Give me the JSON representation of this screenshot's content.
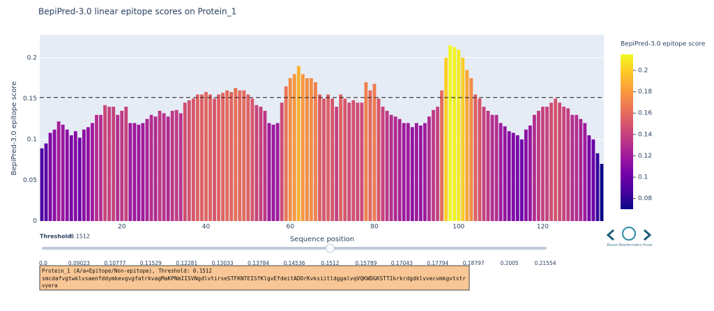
{
  "chart_data": {
    "type": "bar",
    "title": "BepiPred-3.0 linear epitope scores on Protein_1",
    "y_label": "BepiPred-3.0 epitope score",
    "x_label": "Sequence position",
    "x": [
      1,
      2,
      3,
      4,
      5,
      6,
      7,
      8,
      9,
      10,
      11,
      12,
      13,
      14,
      15,
      16,
      17,
      18,
      19,
      20,
      21,
      22,
      23,
      24,
      25,
      26,
      27,
      28,
      29,
      30,
      31,
      32,
      33,
      34,
      35,
      36,
      37,
      38,
      39,
      40,
      41,
      42,
      43,
      44,
      45,
      46,
      47,
      48,
      49,
      50,
      51,
      52,
      53,
      54,
      55,
      56,
      57,
      58,
      59,
      60,
      61,
      62,
      63,
      64,
      65,
      66,
      67,
      68,
      69,
      70,
      71,
      72,
      73,
      74,
      75,
      76,
      77,
      78,
      79,
      80,
      81,
      82,
      83,
      84,
      85,
      86,
      87,
      88,
      89,
      90,
      91,
      92,
      93,
      94,
      95,
      96,
      97,
      98,
      99,
      100,
      101,
      102,
      103,
      104,
      105,
      106,
      107,
      108,
      109,
      110,
      111,
      112,
      113,
      114,
      115,
      116,
      117,
      118,
      119,
      120,
      121,
      122,
      123,
      124,
      125,
      126,
      127,
      128,
      129,
      130,
      131,
      132,
      133,
      134
    ],
    "values": [
      0.089,
      0.095,
      0.108,
      0.112,
      0.122,
      0.118,
      0.112,
      0.105,
      0.11,
      0.102,
      0.112,
      0.115,
      0.12,
      0.13,
      0.13,
      0.142,
      0.14,
      0.14,
      0.13,
      0.135,
      0.14,
      0.12,
      0.12,
      0.118,
      0.12,
      0.125,
      0.13,
      0.128,
      0.135,
      0.132,
      0.128,
      0.135,
      0.136,
      0.132,
      0.145,
      0.148,
      0.15,
      0.155,
      0.155,
      0.158,
      0.155,
      0.15,
      0.155,
      0.157,
      0.16,
      0.158,
      0.163,
      0.16,
      0.16,
      0.155,
      0.15,
      0.142,
      0.14,
      0.135,
      0.12,
      0.118,
      0.12,
      0.145,
      0.165,
      0.175,
      0.18,
      0.19,
      0.18,
      0.175,
      0.175,
      0.17,
      0.155,
      0.15,
      0.155,
      0.15,
      0.14,
      0.155,
      0.15,
      0.145,
      0.148,
      0.145,
      0.145,
      0.17,
      0.16,
      0.168,
      0.15,
      0.14,
      0.135,
      0.13,
      0.128,
      0.125,
      0.12,
      0.12,
      0.115,
      0.12,
      0.117,
      0.12,
      0.128,
      0.136,
      0.14,
      0.16,
      0.2,
      0.215,
      0.213,
      0.21,
      0.2,
      0.185,
      0.175,
      0.155,
      0.15,
      0.14,
      0.135,
      0.13,
      0.13,
      0.12,
      0.116,
      0.11,
      0.108,
      0.105,
      0.1,
      0.112,
      0.117,
      0.13,
      0.135,
      0.14,
      0.14,
      0.145,
      0.15,
      0.145,
      0.14,
      0.138,
      0.13,
      0.13,
      0.125,
      0.12,
      0.105,
      0.1,
      0.083,
      0.07
    ],
    "xlim": [
      0.5,
      134.5
    ],
    "xticks": [
      20,
      40,
      60,
      80,
      100,
      120
    ],
    "ylim": [
      0,
      0.228
    ],
    "yticks": [
      0,
      0.05,
      0.1,
      0.15,
      0.2
    ],
    "grid": true,
    "threshold_label": "Threshold:",
    "threshold": 0.1512,
    "colorbar_title": "BepiPred-3.0 epitope score",
    "clim": [
      0.07,
      0.215
    ],
    "cticks": [
      0.08,
      0.1,
      0.12,
      0.14,
      0.16,
      0.18,
      0.2
    ],
    "colorscale": [
      "#0d0887",
      "#46039f",
      "#7201a8",
      "#9c179e",
      "#bd3786",
      "#d8576b",
      "#ed7953",
      "#fb9f3a",
      "#fdca26",
      "#f0f921"
    ],
    "slider": {
      "steps": [
        {
          "value": 0,
          "label": "0.0"
        },
        0.09023,
        0.10777,
        0.11529,
        0.12281,
        0.13033,
        0.13784,
        0.14536,
        0.1512,
        0.15789,
        0.17043,
        0.17794,
        0.18797,
        0.2005,
        0.21554
      ],
      "active": 8
    },
    "sequence_box": [
      "Protein_1 (A/a=Epitope/Non-epitope), Threshold: 0.1512",
      "smcdafvgtwklvsaenfddymkevgvgfatrkvagMaKPNmIISVNgdlvtirseSTFKNTEISfKlgvEfdeitADDrKvksiitldggalvqVQKWDGKSTTIkrkrdgdklvvecvmkgvtstr",
      "vyera"
    ],
    "logo_text": "Banyar Bioinformatics Group"
  }
}
